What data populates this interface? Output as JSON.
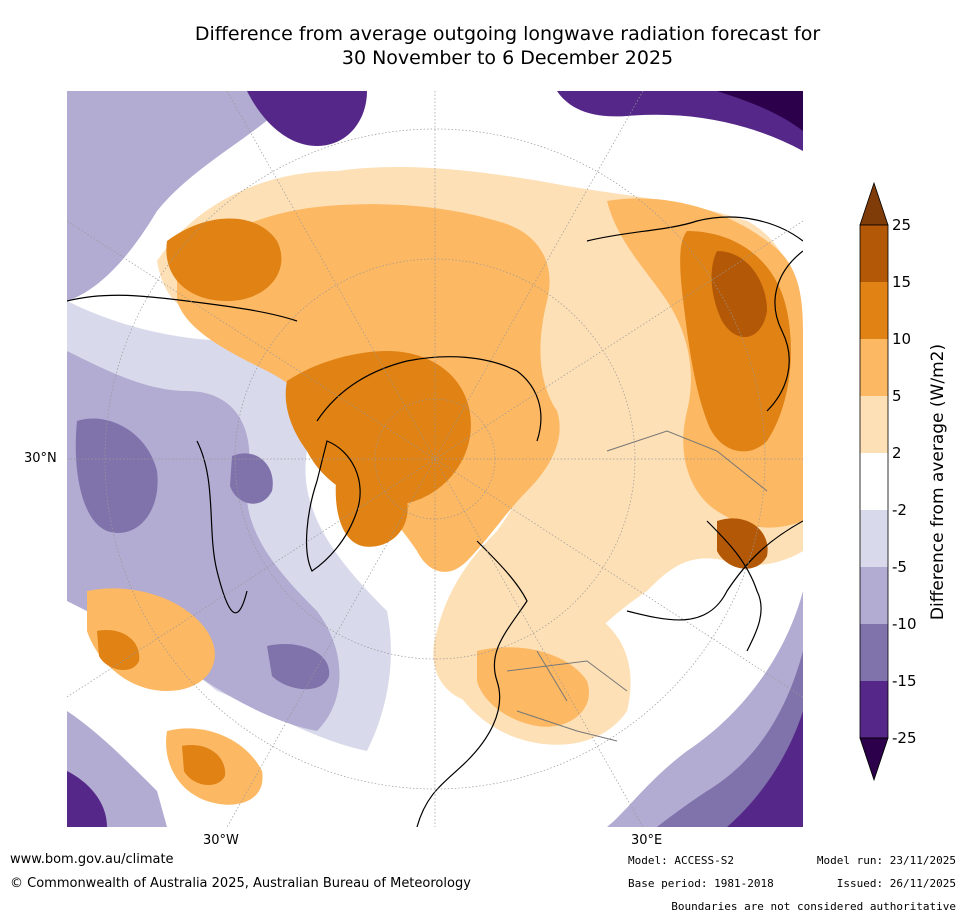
{
  "title_line1": "Difference from average outgoing longwave radiation forecast for",
  "title_line2": "30 November to 6 December 2025",
  "axis_labels": {
    "lat30n": "30°N",
    "lon30w": "30°W",
    "lon30e": "30°E"
  },
  "colorbar": {
    "label": "Difference from average (W/m2)",
    "ticks": [
      "25",
      "15",
      "10",
      "5",
      "2",
      "-2",
      "-5",
      "-10",
      "-15",
      "-25"
    ],
    "colors": {
      "extend_top": "#7f3b08",
      "c15_25": "#b35806",
      "c10_15": "#e08214",
      "c5_10": "#fdb863",
      "c2_5": "#fee0b6",
      "neutral": "#ffffff",
      "cm2_m5": "#d8daeb",
      "cm5_m10": "#b2abd2",
      "cm10_m15": "#8073ac",
      "cm15_m25": "#542788",
      "extend_bottom": "#2d004b"
    }
  },
  "footer": {
    "website": "www.bom.gov.au/climate",
    "copyright": "© Commonwealth of Australia 2025, Australian Bureau of Meteorology",
    "model": "Model: ACCESS-S2",
    "base_period": "Base period: 1981-2018",
    "model_run": "Model run: 23/11/2025",
    "issued": "Issued: 26/11/2025",
    "disclaimer": "Boundaries are not considered authoritative"
  }
}
